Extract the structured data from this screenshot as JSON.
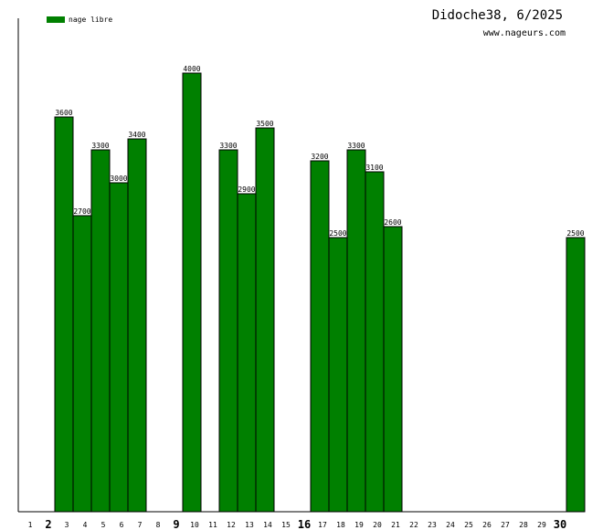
{
  "header": {
    "title": "Didoche38, 6/2025",
    "site": "www.nageurs.com"
  },
  "chart_data": {
    "type": "bar",
    "title": "Didoche38, 6/2025",
    "xlabel": "",
    "ylabel": "",
    "ylim": [
      0,
      4000
    ],
    "grid": false,
    "legend_position": "top-left",
    "categories": [
      "1",
      "2",
      "3",
      "4",
      "5",
      "6",
      "7",
      "8",
      "9",
      "10",
      "11",
      "12",
      "13",
      "14",
      "15",
      "16",
      "17",
      "18",
      "19",
      "20",
      "21",
      "22",
      "23",
      "24",
      "25",
      "26",
      "27",
      "28",
      "29",
      "30"
    ],
    "highlighted_categories": [
      "2",
      "9",
      "16",
      "30"
    ],
    "series": [
      {
        "name": "nage libre",
        "color": "#008000",
        "values": [
          0,
          3600,
          2700,
          3300,
          3000,
          3400,
          0,
          0,
          4000,
          0,
          3300,
          2900,
          3500,
          0,
          0,
          3200,
          2500,
          3300,
          3100,
          2600,
          0,
          0,
          0,
          0,
          0,
          0,
          0,
          0,
          0,
          2500
        ]
      }
    ]
  }
}
